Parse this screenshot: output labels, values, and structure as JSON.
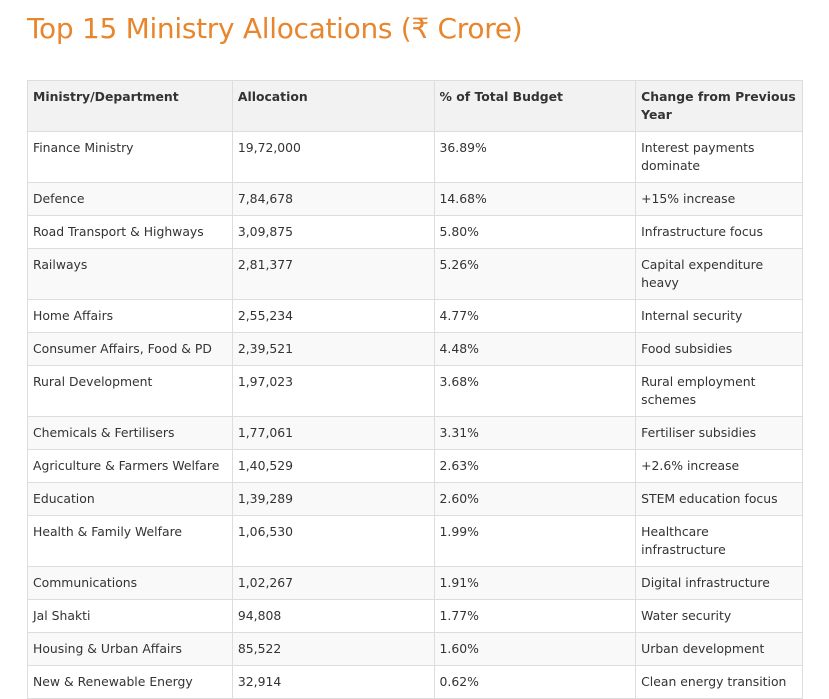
{
  "title": "Top 15 Ministry Allocations (₹ Crore)",
  "table": {
    "headers": [
      "Ministry/Department",
      "Allocation",
      "% of Total Budget",
      "Change from Previous Year"
    ],
    "rows": [
      [
        "Finance Ministry",
        "19,72,000",
        "36.89%",
        "Interest payments dominate"
      ],
      [
        "Defence",
        "7,84,678",
        "14.68%",
        "+15% increase"
      ],
      [
        "Road Transport & Highways",
        "3,09,875",
        "5.80%",
        "Infrastructure focus"
      ],
      [
        "Railways",
        "2,81,377",
        "5.26%",
        "Capital expenditure heavy"
      ],
      [
        "Home Affairs",
        "2,55,234",
        "4.77%",
        "Internal security"
      ],
      [
        "Consumer Affairs, Food & PD",
        "2,39,521",
        "4.48%",
        "Food subsidies"
      ],
      [
        "Rural Development",
        "1,97,023",
        "3.68%",
        "Rural employment schemes"
      ],
      [
        "Chemicals & Fertilisers",
        "1,77,061",
        "3.31%",
        "Fertiliser subsidies"
      ],
      [
        "Agriculture & Farmers Welfare",
        "1,40,529",
        "2.63%",
        "+2.6% increase"
      ],
      [
        "Education",
        "1,39,289",
        "2.60%",
        "STEM education focus"
      ],
      [
        "Health & Family Welfare",
        "1,06,530",
        "1.99%",
        "Healthcare infrastructure"
      ],
      [
        "Communications",
        "1,02,267",
        "1.91%",
        "Digital infrastructure"
      ],
      [
        "Jal Shakti",
        "94,808",
        "1.77%",
        "Water security"
      ],
      [
        "Housing & Urban Affairs",
        "85,522",
        "1.60%",
        "Urban development"
      ],
      [
        "New & Renewable Energy",
        "32,914",
        "0.62%",
        "Clean energy transition"
      ]
    ]
  },
  "colors": {
    "title": "#e8862e",
    "header_bg": "#f2f2f2",
    "border": "#dddddd"
  }
}
